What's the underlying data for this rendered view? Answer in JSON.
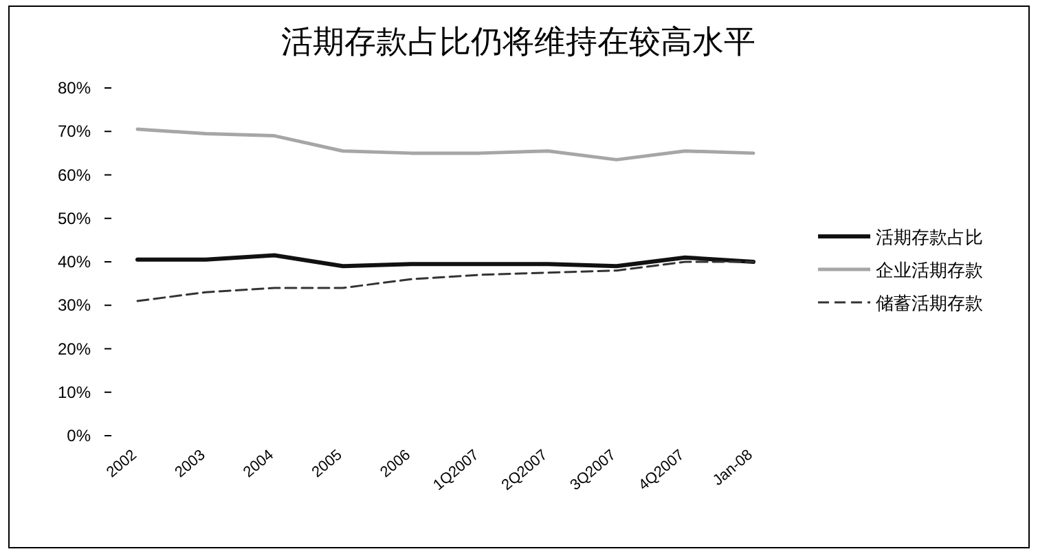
{
  "chart_data": {
    "type": "line",
    "title": "活期存款占比仍将维持在较高水平",
    "categories": [
      "2002",
      "2003",
      "2004",
      "2005",
      "2006",
      "1Q2007",
      "2Q2007",
      "3Q2007",
      "4Q2007",
      "Jan-08"
    ],
    "series": [
      {
        "name": "活期存款占比",
        "color": "#111111",
        "line_style": "solid",
        "values": [
          40.5,
          40.5,
          41.5,
          39,
          39.5,
          39.5,
          39.5,
          39,
          41,
          40
        ]
      },
      {
        "name": "企业活期存款",
        "color": "#a6a6a6",
        "line_style": "solid",
        "values": [
          70.5,
          69.5,
          69,
          65.5,
          65,
          65,
          65.5,
          63.5,
          65.5,
          65
        ]
      },
      {
        "name": "储蓄活期存款",
        "color": "#333333",
        "line_style": "dashed",
        "values": [
          31,
          33,
          34,
          34,
          36,
          37,
          37.5,
          38,
          40,
          40
        ]
      }
    ],
    "ylim": [
      0,
      80
    ],
    "yticks": [
      {
        "value": 0,
        "label": "0%"
      },
      {
        "value": 10,
        "label": "10%"
      },
      {
        "value": 20,
        "label": "20%"
      },
      {
        "value": 30,
        "label": "30%"
      },
      {
        "value": 40,
        "label": "40%"
      },
      {
        "value": 50,
        "label": "50%"
      },
      {
        "value": 60,
        "label": "60%"
      },
      {
        "value": 70,
        "label": "70%"
      },
      {
        "value": 80,
        "label": "80%"
      }
    ],
    "legend": "right",
    "grid": false
  }
}
